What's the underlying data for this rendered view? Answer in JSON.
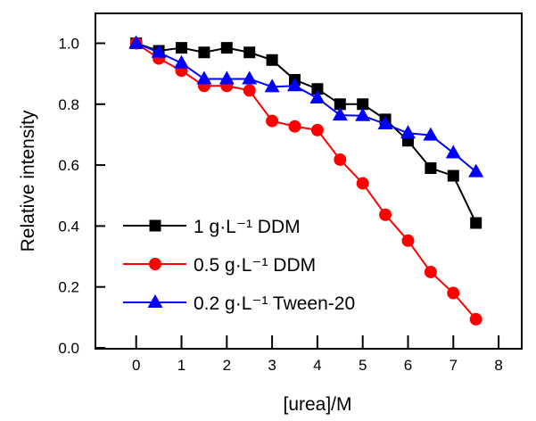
{
  "chart_data": {
    "type": "line",
    "title": "",
    "xlabel": "[urea]/M",
    "ylabel": "Relative intensity",
    "xlim": [
      -0.9,
      8.5
    ],
    "ylim": [
      0.0,
      1.12
    ],
    "xticks": [
      "0",
      "1",
      "2",
      "3",
      "4",
      "5",
      "6",
      "7",
      "8"
    ],
    "yticks": [
      "0.0",
      "0.2",
      "0.4",
      "0.6",
      "0.8",
      "1.0"
    ],
    "grid": false,
    "legend_position": "bottom-left",
    "x": [
      0,
      0.5,
      1,
      1.5,
      2,
      2.5,
      3,
      3.5,
      4,
      4.5,
      5,
      5.5,
      6,
      6.5,
      7,
      7.5
    ],
    "series": [
      {
        "name": "1 g·L⁻¹ DDM",
        "color": "#000000",
        "marker": "square",
        "values": [
          1.0,
          0.975,
          0.985,
          0.97,
          0.985,
          0.97,
          0.945,
          0.88,
          0.85,
          0.8,
          0.8,
          0.75,
          0.68,
          0.59,
          0.565,
          0.41
        ]
      },
      {
        "name": "0.5 g·L⁻¹ DDM",
        "color": "#ff0000",
        "marker": "circle",
        "values": [
          1.0,
          0.95,
          0.91,
          0.86,
          0.86,
          0.845,
          0.745,
          0.727,
          0.715,
          0.618,
          0.54,
          0.437,
          0.352,
          0.249,
          0.18,
          0.094
        ]
      },
      {
        "name": "0.2 g·L⁻¹ Tween-20",
        "color": "#0000ff",
        "marker": "triangle",
        "values": [
          1.0,
          0.97,
          0.935,
          0.883,
          0.883,
          0.883,
          0.857,
          0.86,
          0.82,
          0.764,
          0.762,
          0.735,
          0.705,
          0.698,
          0.64,
          0.578
        ]
      }
    ]
  }
}
